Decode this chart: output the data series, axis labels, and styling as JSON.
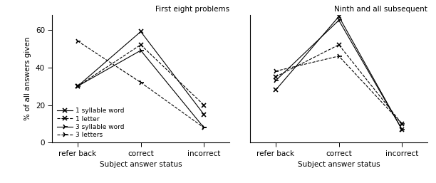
{
  "left_title": "First eight problems",
  "right_title": "Ninth and all subsequent",
  "ylabel": "% of all answers given",
  "xlabel": "Subject answer status",
  "categories": [
    "refer back",
    "correct",
    "incorrect"
  ],
  "ylim": [
    0,
    68
  ],
  "yticks": [
    0,
    20,
    40,
    60
  ],
  "left_series": {
    "1_syllable_word": [
      30,
      59,
      15
    ],
    "1_letter": [
      30,
      52,
      20
    ],
    "3_syllable_word": [
      30,
      49,
      8
    ],
    "3_letters": [
      54,
      32,
      8
    ]
  },
  "right_series": {
    "1_syllable_word": [
      28,
      67,
      7
    ],
    "1_letter": [
      35,
      52,
      10
    ],
    "3_syllable_word": [
      33,
      65,
      7
    ],
    "3_letters": [
      38,
      46,
      10
    ]
  },
  "legend_labels": [
    "1 syllable word",
    "1 letter",
    "3 syllable word",
    "3 letters"
  ],
  "line_styles": [
    "solid",
    "dashed",
    "solid",
    "dashed"
  ],
  "markers": [
    "x",
    "x",
    "4",
    "4"
  ],
  "colors": [
    "black",
    "black",
    "black",
    "black"
  ]
}
